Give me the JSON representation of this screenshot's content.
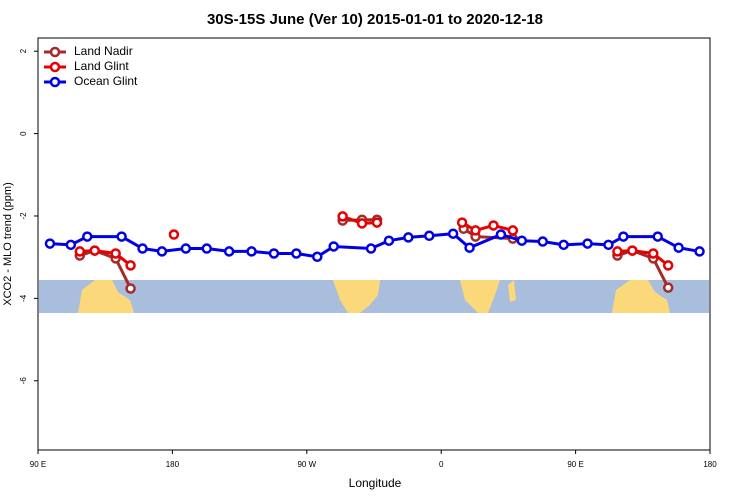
{
  "chart_data": {
    "type": "line",
    "title": "30S-15S June (Ver 10)   2015-01-01 to 2020-12-18",
    "x_label": "Longitude",
    "y_label": "XCO2 - MLO trend (ppm)",
    "xlim": [
      90,
      540
    ],
    "ylim": [
      -7.68,
      2.32
    ],
    "xticks": [
      {
        "value": 90,
        "label": "90 E"
      },
      {
        "value": 180,
        "label": "180"
      },
      {
        "value": 270,
        "label": "90 W"
      },
      {
        "value": 360,
        "label": "0"
      },
      {
        "value": 450,
        "label": "90 E"
      },
      {
        "value": 540,
        "label": "180"
      }
    ],
    "yticks": [
      2,
      0,
      -2,
      -4,
      -6
    ],
    "legend": "top-left",
    "series": [
      {
        "name": "Land Nadir",
        "color": "#a52a2a",
        "x": [
          118,
          128,
          142,
          152,
          null,
          294,
          307,
          317,
          null,
          375,
          383,
          408,
          null,
          478,
          488,
          502,
          512
        ],
        "values": [
          -2.96,
          -2.84,
          -3.03,
          -3.76,
          null,
          -2.11,
          -2.09,
          -2.09,
          null,
          -2.31,
          -2.5,
          -2.55,
          null,
          -2.96,
          -2.84,
          -3.03,
          -3.74
        ]
      },
      {
        "name": "Land Glint",
        "color": "#e60000",
        "x": [
          118,
          128,
          142,
          152,
          null,
          181,
          null,
          294,
          307,
          317,
          null,
          374,
          383,
          395,
          408,
          null,
          478,
          488,
          502,
          512
        ],
        "values": [
          -2.86,
          -2.84,
          -2.91,
          -3.2,
          null,
          -2.45,
          null,
          -2.01,
          -2.18,
          -2.16,
          null,
          -2.16,
          -2.35,
          -2.23,
          -2.35,
          null,
          -2.86,
          -2.84,
          -2.91,
          -3.2
        ]
      },
      {
        "name": "Ocean Glint",
        "color": "#0000e6",
        "x": [
          98,
          112,
          123,
          146,
          160,
          173,
          189,
          203,
          218,
          233,
          248,
          263,
          277,
          288,
          313,
          325,
          338,
          352,
          368,
          379,
          400,
          414,
          428,
          442,
          458,
          472,
          482,
          505,
          519,
          533
        ],
        "values": [
          -2.67,
          -2.7,
          -2.5,
          -2.5,
          -2.79,
          -2.86,
          -2.79,
          -2.79,
          -2.86,
          -2.86,
          -2.91,
          -2.91,
          -2.99,
          -2.74,
          -2.79,
          -2.6,
          -2.52,
          -2.48,
          -2.43,
          -2.77,
          -2.45,
          -2.6,
          -2.62,
          -2.7,
          -2.67,
          -2.7,
          -2.5,
          -2.5,
          -2.77,
          -2.86
        ]
      }
    ]
  }
}
